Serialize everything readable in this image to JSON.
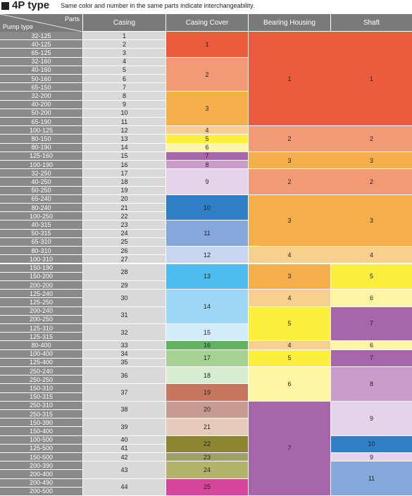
{
  "page": {
    "title": "4P type",
    "subtitle": "Same color and number in the same parts indicate interchangeability."
  },
  "table": {
    "corner_top": "Parts",
    "corner_bottom": "Pump type",
    "columns": [
      "Casing",
      "Casing Cover",
      "Bearing Housing",
      "Shaft"
    ],
    "pump_types": [
      "32-125",
      "40-125",
      "65-125",
      "32-160",
      "40-160",
      "50-160",
      "65-150",
      "32-200",
      "40-200",
      "50-200",
      "65-190",
      "100-125",
      "80-150",
      "80-190",
      "125-160",
      "100-190",
      "32-250",
      "40-250",
      "50-250",
      "65-240",
      "80-240",
      "100-250",
      "40-315",
      "50-315",
      "65-310",
      "80-310",
      "100-310",
      "150-190",
      "150-200",
      "200-200",
      "125-240",
      "125-250",
      "200-240",
      "200-250",
      "125-310",
      "125-315",
      "80-400",
      "100-400",
      "125-400",
      "250-240",
      "250-250",
      "150-310",
      "150-315",
      "250-310",
      "250-315",
      "150-390",
      "150-400",
      "100-500",
      "125-500",
      "150-500",
      "200-390",
      "200-400",
      "200-490",
      "200-500"
    ],
    "casing": [
      {
        "rows": [
          0,
          1
        ],
        "label": "1"
      },
      {
        "rows": [
          1,
          2
        ],
        "label": "2"
      },
      {
        "rows": [
          2,
          3
        ],
        "label": "3"
      },
      {
        "rows": [
          3,
          4
        ],
        "label": "4"
      },
      {
        "rows": [
          4,
          5
        ],
        "label": "5"
      },
      {
        "rows": [
          5,
          6
        ],
        "label": "6"
      },
      {
        "rows": [
          6,
          7
        ],
        "label": "7"
      },
      {
        "rows": [
          7,
          8
        ],
        "label": "8"
      },
      {
        "rows": [
          8,
          9
        ],
        "label": "9"
      },
      {
        "rows": [
          9,
          10
        ],
        "label": "10"
      },
      {
        "rows": [
          10,
          11
        ],
        "label": "11"
      },
      {
        "rows": [
          11,
          12
        ],
        "label": "12"
      },
      {
        "rows": [
          12,
          13
        ],
        "label": "13"
      },
      {
        "rows": [
          13,
          14
        ],
        "label": "14"
      },
      {
        "rows": [
          14,
          15
        ],
        "label": "15"
      },
      {
        "rows": [
          15,
          16
        ],
        "label": "16"
      },
      {
        "rows": [
          16,
          17
        ],
        "label": "17"
      },
      {
        "rows": [
          17,
          18
        ],
        "label": "18"
      },
      {
        "rows": [
          18,
          19
        ],
        "label": "19"
      },
      {
        "rows": [
          19,
          20
        ],
        "label": "20"
      },
      {
        "rows": [
          20,
          21
        ],
        "label": "21"
      },
      {
        "rows": [
          21,
          22
        ],
        "label": "22"
      },
      {
        "rows": [
          22,
          23
        ],
        "label": "23"
      },
      {
        "rows": [
          23,
          24
        ],
        "label": "24"
      },
      {
        "rows": [
          24,
          25
        ],
        "label": "25"
      },
      {
        "rows": [
          25,
          26
        ],
        "label": "26"
      },
      {
        "rows": [
          26,
          27
        ],
        "label": "27"
      },
      {
        "rows": [
          27,
          29
        ],
        "label": "28"
      },
      {
        "rows": [
          29,
          30
        ],
        "label": "29"
      },
      {
        "rows": [
          30,
          32
        ],
        "label": "30"
      },
      {
        "rows": [
          32,
          34
        ],
        "label": "31"
      },
      {
        "rows": [
          34,
          36
        ],
        "label": "32"
      },
      {
        "rows": [
          36,
          37
        ],
        "label": "33"
      },
      {
        "rows": [
          37,
          38
        ],
        "label": "34"
      },
      {
        "rows": [
          38,
          39
        ],
        "label": "35"
      },
      {
        "rows": [
          39,
          41
        ],
        "label": "36"
      },
      {
        "rows": [
          41,
          43
        ],
        "label": "37"
      },
      {
        "rows": [
          43,
          45
        ],
        "label": "38"
      },
      {
        "rows": [
          45,
          47
        ],
        "label": "39"
      },
      {
        "rows": [
          47,
          48
        ],
        "label": "40"
      },
      {
        "rows": [
          48,
          49
        ],
        "label": "41"
      },
      {
        "rows": [
          49,
          50
        ],
        "label": "42"
      },
      {
        "rows": [
          50,
          52
        ],
        "label": "43"
      },
      {
        "rows": [
          52,
          54
        ],
        "label": "44"
      }
    ],
    "casing_cover": [
      {
        "rows": [
          0,
          3
        ],
        "label": "1",
        "color": "#ea5c3b"
      },
      {
        "rows": [
          3,
          7
        ],
        "label": "2",
        "color": "#f19a74"
      },
      {
        "rows": [
          7,
          11
        ],
        "label": "3",
        "color": "#f6b04b"
      },
      {
        "rows": [
          11,
          12
        ],
        "label": "4",
        "color": "#f8d08e"
      },
      {
        "rows": [
          12,
          13
        ],
        "label": "5",
        "color": "#fcef3e"
      },
      {
        "rows": [
          13,
          14
        ],
        "label": "6",
        "color": "#fef6a4"
      },
      {
        "rows": [
          14,
          15
        ],
        "label": "7",
        "color": "#a766aa"
      },
      {
        "rows": [
          15,
          16
        ],
        "label": "8",
        "color": "#c99cc9"
      },
      {
        "rows": [
          16,
          19
        ],
        "label": "9",
        "color": "#e5d3e9"
      },
      {
        "rows": [
          19,
          22
        ],
        "label": "10",
        "color": "#2f7fc6"
      },
      {
        "rows": [
          22,
          25
        ],
        "label": "11",
        "color": "#86a7d9"
      },
      {
        "rows": [
          25,
          27
        ],
        "label": "12",
        "color": "#c7d5ef"
      },
      {
        "rows": [
          27,
          30
        ],
        "label": "13",
        "color": "#4ebcec"
      },
      {
        "rows": [
          30,
          34
        ],
        "label": "14",
        "color": "#9cd8f6"
      },
      {
        "rows": [
          34,
          36
        ],
        "label": "15",
        "color": "#d4edfb"
      },
      {
        "rows": [
          36,
          37
        ],
        "label": "16",
        "color": "#62b460"
      },
      {
        "rows": [
          37,
          39
        ],
        "label": "17",
        "color": "#a5d293"
      },
      {
        "rows": [
          39,
          41
        ],
        "label": "18",
        "color": "#d7ecd1"
      },
      {
        "rows": [
          41,
          43
        ],
        "label": "19",
        "color": "#c8775f"
      },
      {
        "rows": [
          43,
          45
        ],
        "label": "20",
        "color": "#c69b90"
      },
      {
        "rows": [
          45,
          47
        ],
        "label": "21",
        "color": "#e6cbbb"
      },
      {
        "rows": [
          47,
          49
        ],
        "label": "22",
        "color": "#8d8630"
      },
      {
        "rows": [
          49,
          50
        ],
        "label": "23",
        "color": "#a1a06a"
      },
      {
        "rows": [
          50,
          52
        ],
        "label": "24",
        "color": "#b3b46c"
      },
      {
        "rows": [
          52,
          54
        ],
        "label": "25",
        "color": "#d5469a"
      }
    ],
    "bearing_housing": [
      {
        "rows": [
          0,
          11
        ],
        "label": "1",
        "color": "#ea5c3b"
      },
      {
        "rows": [
          11,
          14
        ],
        "label": "2",
        "color": "#f19a74"
      },
      {
        "rows": [
          14,
          16
        ],
        "label": "3",
        "color": "#f6b04b"
      },
      {
        "rows": [
          16,
          19
        ],
        "label": "2",
        "color": "#f19a74"
      },
      {
        "rows": [
          19,
          25
        ],
        "label": "3",
        "color": "#f6b04b"
      },
      {
        "rows": [
          25,
          27
        ],
        "label": "4",
        "color": "#f8d08e"
      },
      {
        "rows": [
          27,
          30
        ],
        "label": "3",
        "color": "#f6b04b"
      },
      {
        "rows": [
          30,
          32
        ],
        "label": "4",
        "color": "#f8d08e"
      },
      {
        "rows": [
          32,
          36
        ],
        "label": "5",
        "color": "#fcef3e"
      },
      {
        "rows": [
          36,
          37
        ],
        "label": "4",
        "color": "#f8d08e"
      },
      {
        "rows": [
          37,
          39
        ],
        "label": "5",
        "color": "#fcef3e"
      },
      {
        "rows": [
          39,
          43
        ],
        "label": "6",
        "color": "#fef6a4"
      },
      {
        "rows": [
          43,
          54
        ],
        "label": "7",
        "color": "#a766aa"
      }
    ],
    "shaft": [
      {
        "rows": [
          0,
          11
        ],
        "label": "1",
        "color": "#ea5c3b"
      },
      {
        "rows": [
          11,
          14
        ],
        "label": "2",
        "color": "#f19a74"
      },
      {
        "rows": [
          14,
          16
        ],
        "label": "3",
        "color": "#f6b04b"
      },
      {
        "rows": [
          16,
          19
        ],
        "label": "2",
        "color": "#f19a74"
      },
      {
        "rows": [
          19,
          25
        ],
        "label": "3",
        "color": "#f6b04b"
      },
      {
        "rows": [
          25,
          27
        ],
        "label": "4",
        "color": "#f8d08e"
      },
      {
        "rows": [
          27,
          30
        ],
        "label": "5",
        "color": "#fcef3e"
      },
      {
        "rows": [
          30,
          32
        ],
        "label": "6",
        "color": "#fef6a4"
      },
      {
        "rows": [
          32,
          36
        ],
        "label": "7",
        "color": "#a766aa"
      },
      {
        "rows": [
          36,
          37
        ],
        "label": "6",
        "color": "#fef6a4"
      },
      {
        "rows": [
          37,
          39
        ],
        "label": "7",
        "color": "#a766aa"
      },
      {
        "rows": [
          39,
          43
        ],
        "label": "8",
        "color": "#c99cc9"
      },
      {
        "rows": [
          43,
          47
        ],
        "label": "9",
        "color": "#e5d3e9"
      },
      {
        "rows": [
          47,
          49
        ],
        "label": "10",
        "color": "#2f7fc6"
      },
      {
        "rows": [
          49,
          50
        ],
        "label": "9",
        "color": "#e5d3e9"
      },
      {
        "rows": [
          50,
          54
        ],
        "label": "11",
        "color": "#86a7d9"
      }
    ],
    "colors": {
      "header_bg": "#7a7a7a",
      "pump_row_bg": "#8a8a8a",
      "casing_bg": "#d9d9d9"
    }
  }
}
